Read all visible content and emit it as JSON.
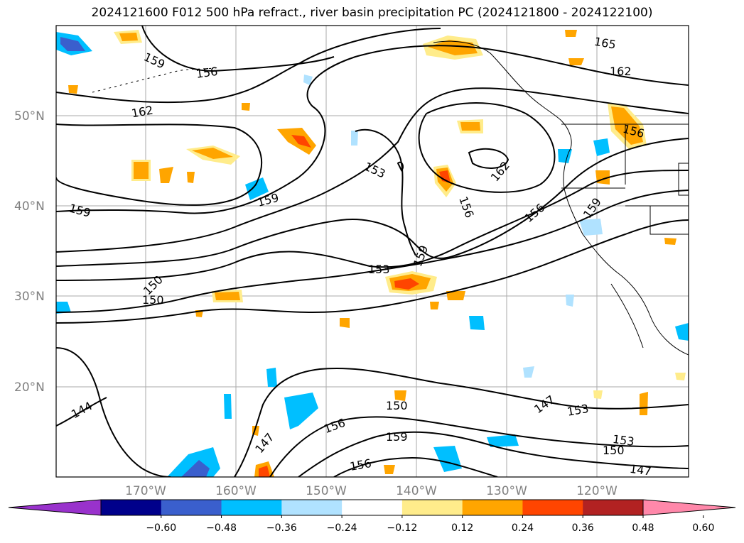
{
  "title": "2024121600 F012 500 hPa refract., river basin precipitation PC (2024121800 - 2024122100)",
  "map": {
    "lat_labels": [
      "50°N",
      "40°N",
      "30°N",
      "20°N"
    ],
    "lon_labels": [
      "170°W",
      "160°W",
      "150°W",
      "140°W",
      "130°W",
      "120°W"
    ],
    "contour_labels": [
      "159",
      "156",
      "162",
      "165",
      "162",
      "159",
      "159",
      "153",
      "162",
      "156",
      "156",
      "159",
      "159",
      "153",
      "150",
      "150",
      "144",
      "147",
      "156",
      "159",
      "156",
      "150",
      "147",
      "153",
      "153",
      "150",
      "147",
      "156"
    ]
  },
  "colorbar": {
    "colors": [
      "#9932cc",
      "#00008b",
      "#3a5fcd",
      "#00bfff",
      "#b0e2ff",
      "#ffffff",
      "#ffec8b",
      "#ffa500",
      "#ff4500",
      "#b22222",
      "#ff88aa"
    ],
    "tick_labels": [
      "−0.60",
      "−0.48",
      "−0.36",
      "−0.24",
      "−0.12",
      "0.12",
      "0.24",
      "0.36",
      "0.48",
      "0.60"
    ]
  }
}
